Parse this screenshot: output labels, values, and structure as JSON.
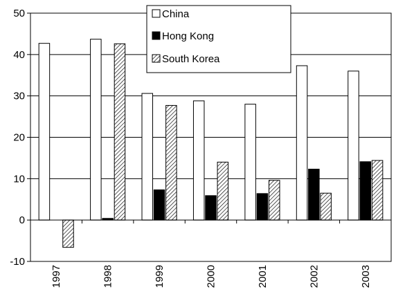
{
  "chart_data": {
    "type": "bar",
    "categories": [
      "1997",
      "1998",
      "1999",
      "2000",
      "2001",
      "2002",
      "2003"
    ],
    "series": [
      {
        "name": "China",
        "values": [
          42.7,
          43.7,
          30.6,
          28.8,
          28.0,
          37.3,
          36.0
        ],
        "fill": "#ffffff"
      },
      {
        "name": "Hong Kong",
        "values": [
          0,
          0.4,
          7.3,
          5.9,
          6.4,
          12.3,
          14.1
        ],
        "fill": "#000000"
      },
      {
        "name": "South Korea",
        "values": [
          -6.6,
          42.6,
          27.7,
          14.0,
          9.6,
          6.5,
          14.4
        ],
        "fill": "hatch"
      }
    ],
    "ylim": [
      -10,
      50
    ],
    "yticks": [
      "-10",
      "0",
      "10",
      "20",
      "30",
      "40",
      "50"
    ],
    "grid": true,
    "legend_position": "top-center"
  }
}
